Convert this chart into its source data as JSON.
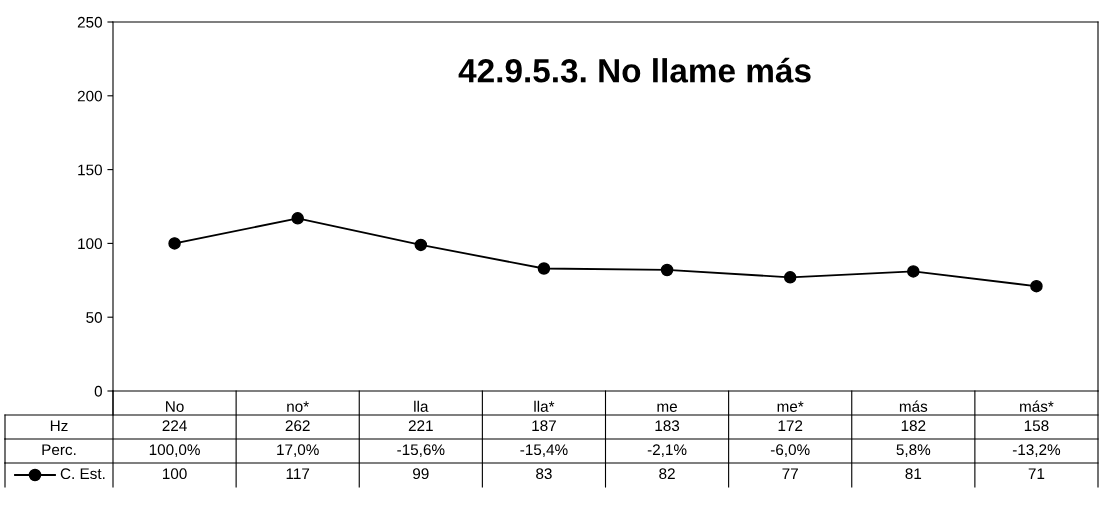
{
  "chart_data": {
    "type": "line",
    "title": "42.9.5.3. No llame más",
    "categories": [
      "No",
      "no*",
      "lla",
      "lla*",
      "me",
      "me*",
      "más",
      "más*"
    ],
    "series": [
      {
        "name": "C. Est.",
        "color": "#000000",
        "values": [
          100,
          117,
          99,
          83,
          82,
          77,
          81,
          71
        ]
      }
    ],
    "ylim": [
      0,
      250
    ],
    "yticks": [
      0,
      50,
      100,
      150,
      200,
      250
    ],
    "grid": false,
    "marker": "circle",
    "line_style": "solid",
    "data_labels": true,
    "annotations": [
      "Hz",
      "224",
      "262",
      "221",
      "187",
      "183",
      "172",
      "182",
      "158",
      "Perc.",
      "100,0%",
      "17,0%",
      "-15,6%",
      "-15,4%",
      "-2,1%",
      "-6,0%",
      "5,8%",
      "-13,2%"
    ]
  }
}
